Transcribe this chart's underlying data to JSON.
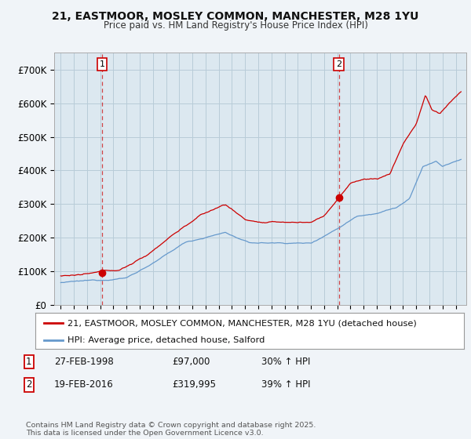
{
  "title_line1": "21, EASTMOOR, MOSLEY COMMON, MANCHESTER, M28 1YU",
  "title_line2": "Price paid vs. HM Land Registry's House Price Index (HPI)",
  "background_color": "#f0f4f8",
  "plot_bg_color": "#dce8f0",
  "grid_color": "#b8ccd8",
  "red_color": "#cc0000",
  "blue_color": "#6699cc",
  "sale1_year": 1998.15,
  "sale1_price": 97000,
  "sale2_year": 2016.13,
  "sale2_price": 319995,
  "ylim_max": 750000,
  "yticks": [
    0,
    100000,
    200000,
    300000,
    400000,
    500000,
    600000,
    700000
  ],
  "ytick_labels": [
    "£0",
    "£100K",
    "£200K",
    "£300K",
    "£400K",
    "£500K",
    "£600K",
    "£700K"
  ],
  "legend_line1": "21, EASTMOOR, MOSLEY COMMON, MANCHESTER, M28 1YU (detached house)",
  "legend_line2": "HPI: Average price, detached house, Salford",
  "annotation1_date": "27-FEB-1998",
  "annotation1_price": "£97,000",
  "annotation1_hpi": "30% ↑ HPI",
  "annotation2_date": "19-FEB-2016",
  "annotation2_price": "£319,995",
  "annotation2_hpi": "39% ↑ HPI",
  "footer": "Contains HM Land Registry data © Crown copyright and database right 2025.\nThis data is licensed under the Open Government Licence v3.0."
}
